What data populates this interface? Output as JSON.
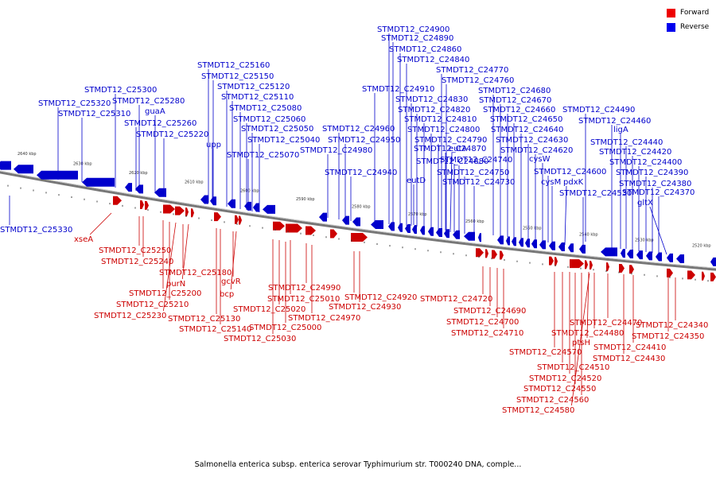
{
  "caption": "Salmonella enterica subsp. enterica serovar Typhimurium str. T000240 DNA, comple...",
  "legend": [
    {
      "label": "Forward",
      "color": "#ee0000"
    },
    {
      "label": "Reverse",
      "color": "#0000ee"
    }
  ],
  "colors": {
    "forward": "#cc0000",
    "reverse": "#0000cc",
    "backbone": "#777777"
  },
  "scale_labels": [
    "2640 kbp",
    "2630 kbp",
    "2620 kbp",
    "2610 kbp",
    "2600 kbp",
    "2590 kbp",
    "2580 kbp",
    "2570 kbp",
    "2560 kbp",
    "2550 kbp",
    "2540 kbp",
    "2530 kbp",
    "2520 kbp"
  ],
  "reverse_labels": [
    "STMDT12_C24900",
    "STMDT12_C24890",
    "STMDT12_C24860",
    "STMDT12_C24840",
    "STMDT12_C25160",
    "STMDT12_C24770",
    "STMDT12_C25150",
    "STMDT12_C24760",
    "STMDT12_C25120",
    "STMDT12_C25300",
    "STMDT12_C24910",
    "STMDT12_C24680",
    "STMDT12_C25320",
    "STMDT12_C25280",
    "STMDT12_C25110",
    "STMDT12_C24830",
    "STMDT12_C24670",
    "STMDT12_C24490",
    "STMDT12_C25310",
    "guaA",
    "STMDT12_C25080",
    "STMDT12_C24820",
    "STMDT12_C24660",
    "STMDT12_C25060",
    "STMDT12_C24810",
    "STMDT12_C24650",
    "STMDT12_C24460",
    "STMDT12_C25260",
    "STMDT12_C25050",
    "STMDT12_C24960",
    "STMDT12_C24800",
    "STMDT12_C24640",
    "ligA",
    "STMDT12_C25220",
    "STMDT12_C25040",
    "STMDT12_C24950",
    "STMDT12_C24790",
    "STMDT12_C24630",
    "STMDT12_C24440",
    "upp",
    "STMDT12_C24980",
    "STMDT12_C24870",
    "eutA",
    "STMDT12_C24620",
    "STMDT12_C24420",
    "STMDT12_C25070",
    "STMDT12_C24740",
    "cysW",
    "STMDT12_C24880",
    "STMDT12_C24400",
    "STMDT12_C24940",
    "STMDT12_C24750",
    "STMDT12_C24600",
    "STMDT12_C24390",
    "eutD",
    "cysM",
    "pdxK",
    "STMDT12_C24730",
    "STMDT12_C24380",
    "STMDT12_C24530",
    "STMDT12_C24370",
    "gltX",
    "STMDT12_C25330"
  ],
  "forward_labels": [
    "xseA",
    "STMDT12_C25250",
    "STMDT12_C25240",
    "STMDT12_C25180",
    "purN",
    "gcvR",
    "STMDT12_C25200",
    "bcp",
    "STMDT12_C24990",
    "STMDT12_C25210",
    "STMDT12_C25010",
    "STMDT12_C24920",
    "STMDT12_C24720",
    "STMDT12_C25230",
    "STMDT12_C25020",
    "STMDT12_C24930",
    "STMDT12_C24690",
    "STMDT12_C25130",
    "STMDT12_C24970",
    "STMDT12_C24700",
    "STMDT12_C24470",
    "STMDT12_C25140",
    "STMDT12_C25000",
    "STMDT12_C24710",
    "STMDT12_C24480",
    "STMDT12_C24340",
    "ptsH",
    "STMDT12_C25030",
    "STMDT12_C24350",
    "STMDT12_C24410",
    "STMDT12_C24570",
    "STMDT12_C24430",
    "STMDT12_C24510",
    "STMDT12_C24520",
    "STMDT12_C24550",
    "STMDT12_C24560",
    "STMDT12_C24580"
  ]
}
